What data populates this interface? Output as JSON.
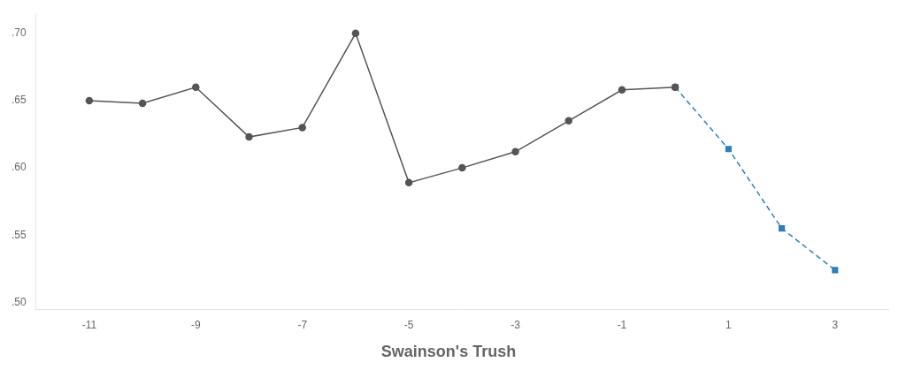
{
  "chart_data": {
    "type": "line",
    "title": "Swainson's Trush",
    "series": [
      {
        "color": "#555555",
        "marker": "circle",
        "line_style": "solid",
        "x": [
          -11,
          -10,
          -9,
          -8,
          -7,
          -6,
          -5,
          -4,
          -3,
          -2,
          -1,
          0
        ],
        "values": [
          0.65,
          0.648,
          0.66,
          0.623,
          0.63,
          0.7,
          0.589,
          0.6,
          0.612,
          0.635,
          0.658,
          0.66
        ]
      },
      {
        "color": "#2e7fb8",
        "marker": "square",
        "line_style": "dashed",
        "x": [
          0,
          1,
          2,
          3
        ],
        "values": [
          0.66,
          0.614,
          0.555,
          0.524
        ]
      }
    ],
    "xlim": [
      -12.0,
      4.0
    ],
    "ylim": [
      0.495,
      0.715
    ],
    "xticks": [
      -11,
      -9,
      -7,
      -5,
      -3,
      -1,
      1,
      3
    ],
    "yticks": [
      {
        "value": 0.5,
        "label": ".50"
      },
      {
        "value": 0.55,
        "label": ".55"
      },
      {
        "value": 0.6,
        "label": ".60"
      },
      {
        "value": 0.65,
        "label": ".65"
      },
      {
        "value": 0.7,
        "label": ".70"
      }
    ],
    "grid": false
  }
}
